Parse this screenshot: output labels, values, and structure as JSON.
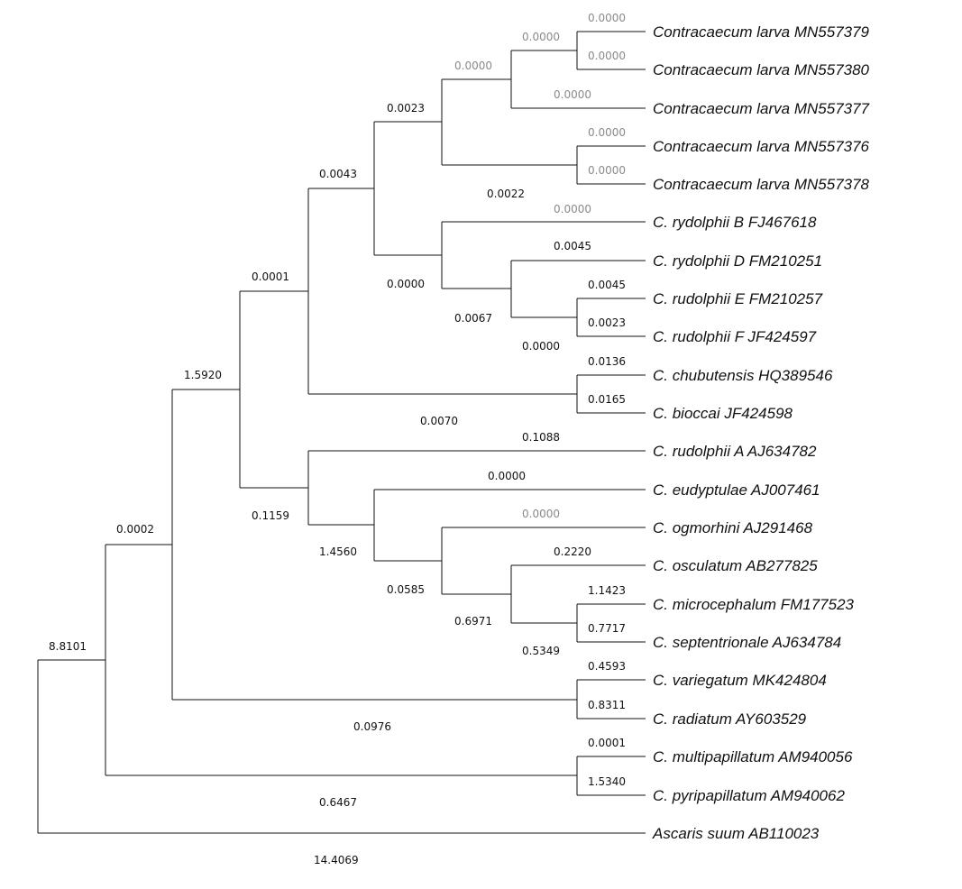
{
  "tree": {
    "taxa": [
      "Contracaecum larva MN557379",
      "Contracaecum larva MN557380",
      "Contracaecum larva MN557377",
      "Contracaecum larva MN557376",
      "Contracaecum larva MN557378",
      "C. rydolphii B FJ467618",
      "C. rydolphii D FM210251",
      "C. rudolphii E FM210257",
      "C. rudolphii F JF424597",
      "C. chubutensis HQ389546",
      "C. bioccai JF424598",
      "C. rudolphii A AJ634782",
      "C. eudyptulae AJ007461",
      "C. ogmorhini AJ291468",
      "C. osculatum AB277825",
      "C. microcephalum FM177523",
      "C. septentrionale AJ634784",
      "C. variegatum MK424804",
      "C. radiatum AY603529",
      "C. multipapillatum AM940056",
      "C. pyripapillatum AM940062",
      "Ascaris suum AB110023"
    ],
    "branch_labels": [
      {
        "text": "0.0000",
        "grey": true
      },
      {
        "text": "0.0000",
        "grey": true
      },
      {
        "text": "0.0000",
        "grey": true
      },
      {
        "text": "0.0000",
        "grey": true
      },
      {
        "text": "0.0000",
        "grey": true
      },
      {
        "text": "0.0000",
        "grey": true
      },
      {
        "text": "0.0000",
        "grey": true
      },
      {
        "text": "0.0023",
        "grey": false
      },
      {
        "text": "0.0022",
        "grey": false
      },
      {
        "text": "0.0000",
        "grey": true
      },
      {
        "text": "0.0043",
        "grey": false
      },
      {
        "text": "0.0045",
        "grey": false
      },
      {
        "text": "0.0000",
        "grey": false
      },
      {
        "text": "0.0045",
        "grey": false
      },
      {
        "text": "0.0067",
        "grey": false
      },
      {
        "text": "0.0023",
        "grey": false
      },
      {
        "text": "0.0000",
        "grey": false
      },
      {
        "text": "0.0001",
        "grey": false
      },
      {
        "text": "0.0136",
        "grey": false
      },
      {
        "text": "0.0165",
        "grey": false
      },
      {
        "text": "1.5920",
        "grey": false
      },
      {
        "text": "0.0070",
        "grey": false
      },
      {
        "text": "0.1088",
        "grey": false
      },
      {
        "text": "0.0000",
        "grey": false
      },
      {
        "text": "0.1159",
        "grey": false
      },
      {
        "text": "0.0000",
        "grey": true
      },
      {
        "text": "1.4560",
        "grey": false
      },
      {
        "text": "0.2220",
        "grey": false
      },
      {
        "text": "0.0585",
        "grey": false
      },
      {
        "text": "1.1423",
        "grey": false
      },
      {
        "text": "0.6971",
        "grey": false
      },
      {
        "text": "0.7717",
        "grey": false
      },
      {
        "text": "0.5349",
        "grey": false
      },
      {
        "text": "0.4593",
        "grey": false
      },
      {
        "text": "0.0002",
        "grey": false
      },
      {
        "text": "0.8311",
        "grey": false
      },
      {
        "text": "8.8101",
        "grey": false
      },
      {
        "text": "0.0976",
        "grey": false
      },
      {
        "text": "0.0001",
        "grey": false
      },
      {
        "text": "1.5340",
        "grey": false
      },
      {
        "text": "0.6467",
        "grey": false
      },
      {
        "text": "14.4069",
        "grey": false
      }
    ]
  }
}
